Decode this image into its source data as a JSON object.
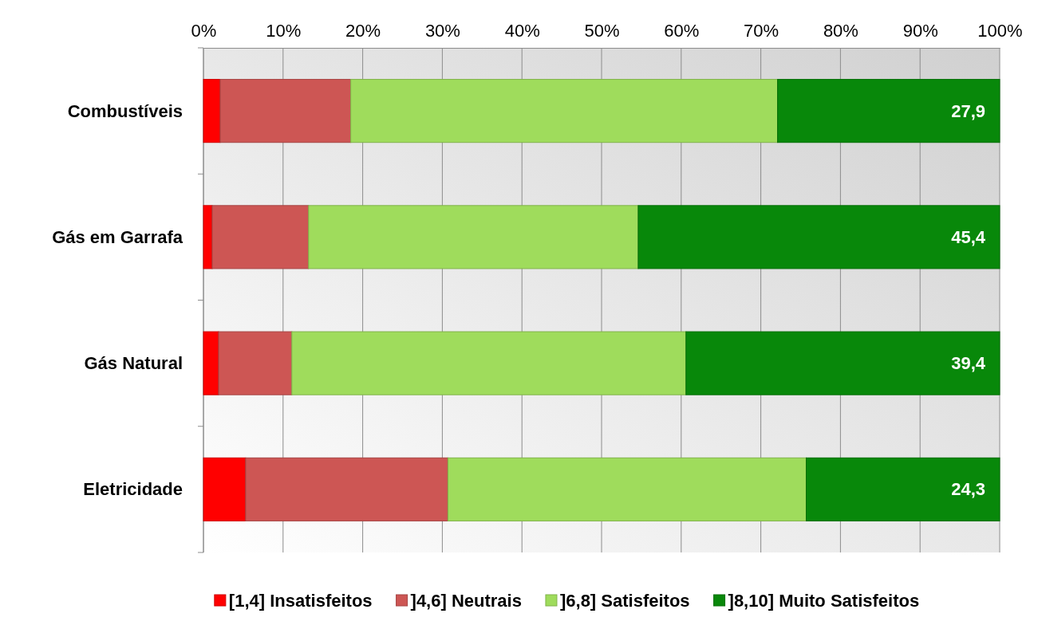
{
  "chart_data": {
    "type": "bar",
    "orientation": "horizontal",
    "stacked": true,
    "categories": [
      "Combustíveis",
      "Gás em Garrafa",
      "Gás Natural",
      "Eletricidade"
    ],
    "series": [
      {
        "name": "[1,4] Insatisfeitos",
        "color": "#ff0000",
        "values": [
          2.1,
          1.1,
          1.9,
          5.3
        ]
      },
      {
        "name": "]4,6] Neutrais",
        "color": "#cd5654",
        "values": [
          16.4,
          12.1,
          9.2,
          25.4
        ]
      },
      {
        "name": "]6,8] Satisfeitos",
        "color": "#9fdc5c",
        "values": [
          53.6,
          41.4,
          49.5,
          45.0
        ]
      },
      {
        "name": "]8,10] Muito Satisfeitos",
        "color": "#08880a",
        "values": [
          27.9,
          45.4,
          39.4,
          24.3
        ],
        "value_labels": [
          "27,9",
          "45,4",
          "39,4",
          "24,3"
        ]
      }
    ],
    "xlim": [
      0,
      100
    ],
    "xticks": [
      {
        "value": 0,
        "label": "0%"
      },
      {
        "value": 10,
        "label": "10%"
      },
      {
        "value": 20,
        "label": "20%"
      },
      {
        "value": 30,
        "label": "30%"
      },
      {
        "value": 40,
        "label": "40%"
      },
      {
        "value": 50,
        "label": "50%"
      },
      {
        "value": 60,
        "label": "60%"
      },
      {
        "value": 70,
        "label": "70%"
      },
      {
        "value": 80,
        "label": "80%"
      },
      {
        "value": 90,
        "label": "90%"
      },
      {
        "value": 100,
        "label": "100%"
      }
    ],
    "grid": "x",
    "legend": "bottom"
  }
}
